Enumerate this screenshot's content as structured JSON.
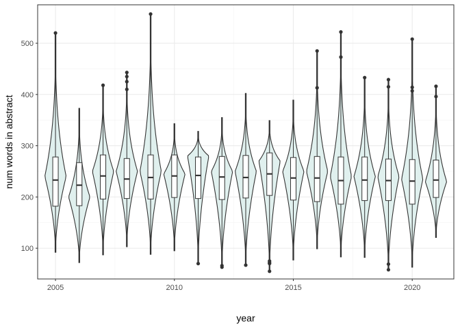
{
  "chart_data": {
    "type": "violin",
    "xlabel": "year",
    "ylabel": "num words in abstract",
    "xlim": [
      2004.25,
      2021.75
    ],
    "ylim": [
      40,
      575
    ],
    "x_ticks": [
      2005,
      2010,
      2015,
      2020
    ],
    "y_ticks": [
      100,
      200,
      300,
      400,
      500
    ],
    "grid": true,
    "fill_color": "#e0f0ee",
    "line_color": "#333333",
    "violins": [
      {
        "year": 2005,
        "min": 92,
        "max": 520,
        "q1": 182,
        "median": 233,
        "q3": 278,
        "mode": 240,
        "outliers": [
          520
        ]
      },
      {
        "year": 2006,
        "min": 72,
        "max": 373,
        "q1": 183,
        "median": 223,
        "q3": 267,
        "mode": 200,
        "outliers": []
      },
      {
        "year": 2007,
        "min": 87,
        "max": 418,
        "q1": 196,
        "median": 241,
        "q3": 282,
        "mode": 250,
        "outliers": [
          418
        ]
      },
      {
        "year": 2008,
        "min": 103,
        "max": 443,
        "q1": 197,
        "median": 235,
        "q3": 275,
        "mode": 250,
        "outliers": [
          443,
          435,
          425,
          410
        ]
      },
      {
        "year": 2009,
        "min": 88,
        "max": 557,
        "q1": 196,
        "median": 238,
        "q3": 282,
        "mode": 250,
        "outliers": [
          557
        ]
      },
      {
        "year": 2010,
        "min": 95,
        "max": 343,
        "q1": 199,
        "median": 241,
        "q3": 282,
        "mode": 245,
        "outliers": []
      },
      {
        "year": 2011,
        "min": 70,
        "max": 328,
        "q1": 197,
        "median": 242,
        "q3": 278,
        "mode": 280,
        "outliers": [
          70
        ]
      },
      {
        "year": 2012,
        "min": 63,
        "max": 355,
        "q1": 195,
        "median": 239,
        "q3": 279,
        "mode": 250,
        "outliers": [
          66,
          63
        ]
      },
      {
        "year": 2013,
        "min": 67,
        "max": 402,
        "q1": 198,
        "median": 238,
        "q3": 281,
        "mode": 250,
        "outliers": [
          67
        ]
      },
      {
        "year": 2014,
        "min": 55,
        "max": 349,
        "q1": 203,
        "median": 245,
        "q3": 286,
        "mode": 270,
        "outliers": [
          75,
          72,
          70,
          55
        ]
      },
      {
        "year": 2015,
        "min": 77,
        "max": 389,
        "q1": 194,
        "median": 237,
        "q3": 277,
        "mode": 250,
        "outliers": []
      },
      {
        "year": 2016,
        "min": 99,
        "max": 485,
        "q1": 191,
        "median": 237,
        "q3": 279,
        "mode": 250,
        "outliers": [
          485,
          413
        ]
      },
      {
        "year": 2017,
        "min": 83,
        "max": 522,
        "q1": 186,
        "median": 232,
        "q3": 278,
        "mode": 240,
        "outliers": [
          522,
          473
        ]
      },
      {
        "year": 2018,
        "min": 82,
        "max": 433,
        "q1": 193,
        "median": 233,
        "q3": 278,
        "mode": 240,
        "outliers": [
          433
        ]
      },
      {
        "year": 2019,
        "min": 58,
        "max": 429,
        "q1": 193,
        "median": 232,
        "q3": 274,
        "mode": 240,
        "outliers": [
          429,
          415,
          69,
          58
        ]
      },
      {
        "year": 2020,
        "min": 63,
        "max": 508,
        "q1": 186,
        "median": 231,
        "q3": 273,
        "mode": 235,
        "outliers": [
          508,
          414,
          407
        ]
      },
      {
        "year": 2021,
        "min": 121,
        "max": 416,
        "q1": 199,
        "median": 233,
        "q3": 272,
        "mode": 230,
        "outliers": [
          416,
          396
        ]
      }
    ]
  }
}
